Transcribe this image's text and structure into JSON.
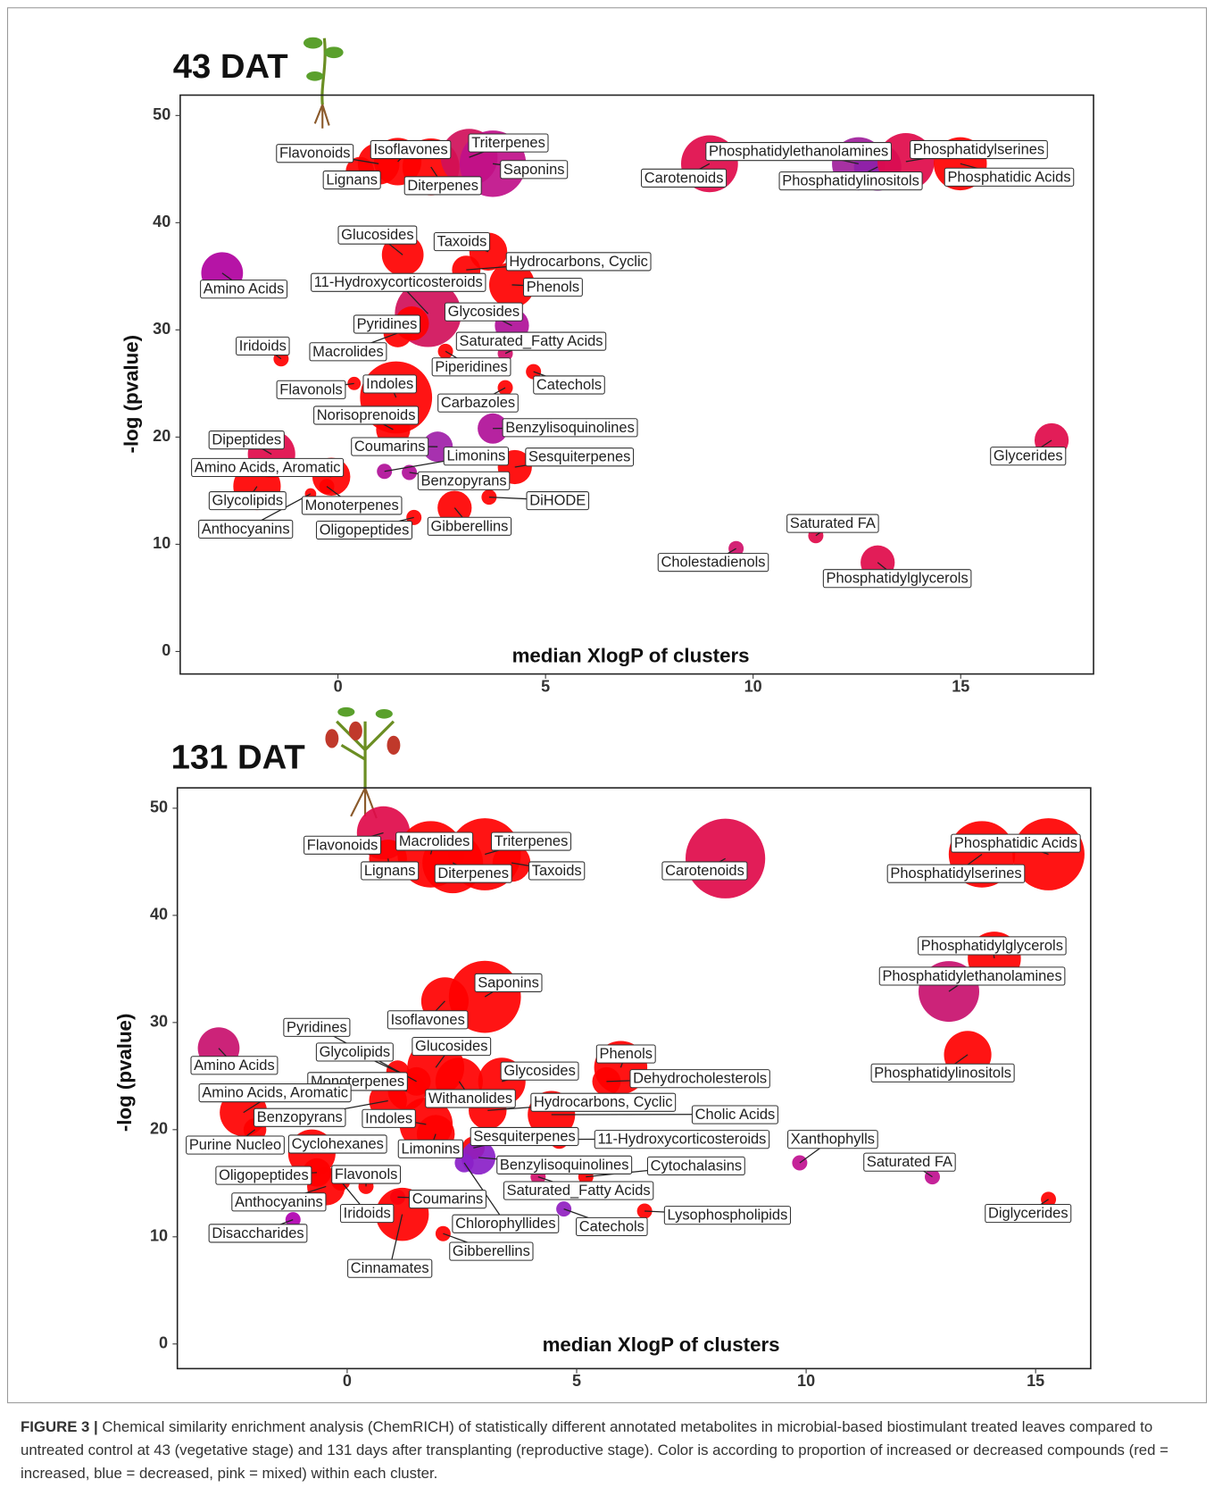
{
  "chart_data": [
    {
      "type": "bubble",
      "title": "43 DAT",
      "xlabel": "median XlogP of clusters",
      "ylabel": "-log (pvalue)",
      "xlim": [
        -3.8,
        18.2
      ],
      "ylim": [
        -2.1,
        51.9
      ],
      "xticks": [
        0,
        5,
        10,
        15
      ],
      "yticks": [
        0,
        10,
        20,
        30,
        40,
        50
      ],
      "points": [
        {
          "name": "Flavonoids",
          "x": 0.98,
          "y": 45.5,
          "size": 22,
          "color": "#ff0000"
        },
        {
          "name": "Isoflavones",
          "x": 1.44,
          "y": 45.7,
          "size": 25,
          "color": "#ff0000"
        },
        {
          "name": "Lignans",
          "x": 0.53,
          "y": 44.8,
          "size": 15,
          "color": "#ff0000"
        },
        {
          "name": "Diterpenes",
          "x": 2.24,
          "y": 45.2,
          "size": 30,
          "color": "#ff0000"
        },
        {
          "name": "Triterpenes",
          "x": 3.16,
          "y": 46.1,
          "size": 30,
          "color": "#d0105a"
        },
        {
          "name": "Saponins",
          "x": 3.73,
          "y": 45.5,
          "size": 35,
          "color": "#c0108a"
        },
        {
          "name": "Carotenoids",
          "x": 8.95,
          "y": 45.5,
          "size": 30,
          "color": "#e00a4a"
        },
        {
          "name": "Phosphatidylethanolamines",
          "x": 12.54,
          "y": 45.5,
          "size": 28,
          "color": "#a0209b"
        },
        {
          "name": "Phosphatidylinositols",
          "x": 13.0,
          "y": 45.2,
          "size": 25,
          "color": "#8e1fa8"
        },
        {
          "name": "Phosphatidylserines",
          "x": 13.68,
          "y": 45.7,
          "size": 30,
          "color": "#e00a4a"
        },
        {
          "name": "Phosphatidic Acids",
          "x": 14.99,
          "y": 45.5,
          "size": 28,
          "color": "#ff0000"
        },
        {
          "name": "Amino Acids",
          "x": -2.79,
          "y": 35.3,
          "size": 22,
          "color": "#b0009e"
        },
        {
          "name": "Glucosides",
          "x": 1.56,
          "y": 37.0,
          "size": 22,
          "color": "#ff0000"
        },
        {
          "name": "Taxoids",
          "x": 3.62,
          "y": 37.3,
          "size": 20,
          "color": "#ff0000"
        },
        {
          "name": "Hydrocarbons, Cyclic",
          "x": 3.09,
          "y": 35.6,
          "size": 15,
          "color": "#ff0000"
        },
        {
          "name": "Phenols",
          "x": 4.19,
          "y": 34.2,
          "size": 24,
          "color": "#ff0000"
        },
        {
          "name": "11-Hydroxycorticosteroids",
          "x": 2.17,
          "y": 31.5,
          "size": 35,
          "color": "#d0105a"
        },
        {
          "name": "Glycosides",
          "x": 4.19,
          "y": 30.4,
          "size": 18,
          "color": "#b01098"
        },
        {
          "name": "Pyridines",
          "x": 1.78,
          "y": 30.6,
          "size": 18,
          "color": "#ff0000"
        },
        {
          "name": "Macrolides",
          "x": 1.44,
          "y": 29.7,
          "size": 15,
          "color": "#ff0000"
        },
        {
          "name": "Iridoids",
          "x": -1.37,
          "y": 27.3,
          "size": 8,
          "color": "#ff0000"
        },
        {
          "name": "Saturated_Fatty Acids",
          "x": 4.03,
          "y": 27.8,
          "size": 8,
          "color": "#d0106a"
        },
        {
          "name": "Piperidines",
          "x": 2.59,
          "y": 28.0,
          "size": 8,
          "color": "#ff0000"
        },
        {
          "name": "Catechols",
          "x": 4.71,
          "y": 26.1,
          "size": 8,
          "color": "#ff0000"
        },
        {
          "name": "Flavonols",
          "x": 0.39,
          "y": 25.0,
          "size": 7,
          "color": "#ff0000"
        },
        {
          "name": "Indoles",
          "x": 1.4,
          "y": 23.7,
          "size": 38,
          "color": "#ff0000"
        },
        {
          "name": "Carbazoles",
          "x": 4.03,
          "y": 24.6,
          "size": 8,
          "color": "#ff0000"
        },
        {
          "name": "Norisoprenoids",
          "x": 1.33,
          "y": 20.7,
          "size": 18,
          "color": "#ff0000"
        },
        {
          "name": "Benzylisoquinolines",
          "x": 3.73,
          "y": 20.8,
          "size": 16,
          "color": "#b01098"
        },
        {
          "name": "Coumarins",
          "x": 2.4,
          "y": 19.1,
          "size": 16,
          "color": "#a020a8"
        },
        {
          "name": "Dipeptides",
          "x": -1.6,
          "y": 18.4,
          "size": 25,
          "color": "#e00a4a"
        },
        {
          "name": "Limonins",
          "x": 1.12,
          "y": 16.8,
          "size": 8,
          "color": "#b01098"
        },
        {
          "name": "Benzopyrans",
          "x": 1.72,
          "y": 16.7,
          "size": 8,
          "color": "#b01098"
        },
        {
          "name": "Sesquiterpenes",
          "x": 4.26,
          "y": 17.2,
          "size": 18,
          "color": "#ff0000"
        },
        {
          "name": "Amino Acids, Aromatic",
          "x": -0.16,
          "y": 16.3,
          "size": 20,
          "color": "#ff0000"
        },
        {
          "name": "Glycolipids",
          "x": -1.95,
          "y": 15.4,
          "size": 25,
          "color": "#ff0000"
        },
        {
          "name": "Monoterpenes",
          "x": -0.27,
          "y": 15.4,
          "size": 8,
          "color": "#ff0000"
        },
        {
          "name": "Anthocyanins",
          "x": -0.66,
          "y": 14.7,
          "size": 6,
          "color": "#ff0000"
        },
        {
          "name": "DiHODE",
          "x": 3.64,
          "y": 14.4,
          "size": 8,
          "color": "#ff0000"
        },
        {
          "name": "Gibberellins",
          "x": 2.81,
          "y": 13.4,
          "size": 18,
          "color": "#ff0000"
        },
        {
          "name": "Oligopeptides",
          "x": 1.83,
          "y": 12.5,
          "size": 8,
          "color": "#ff0000"
        },
        {
          "name": "Glycerides",
          "x": 17.19,
          "y": 19.7,
          "size": 18,
          "color": "#e00a4a"
        },
        {
          "name": "Saturated FA",
          "x": 11.51,
          "y": 10.8,
          "size": 8,
          "color": "#e00a4a"
        },
        {
          "name": "Cholestadienols",
          "x": 9.59,
          "y": 9.6,
          "size": 8,
          "color": "#d0106a"
        },
        {
          "name": "Phosphatidylglycerols",
          "x": 13.0,
          "y": 8.3,
          "size": 18,
          "color": "#e00a4a"
        }
      ]
    },
    {
      "type": "bubble",
      "title": "131 DAT",
      "xlabel": "median XlogP of clusters",
      "ylabel": "-log (pvalue)",
      "xlim": [
        -3.7,
        16.2
      ],
      "ylim": [
        -2.3,
        51.9
      ],
      "xticks": [
        0,
        5,
        10,
        15
      ],
      "yticks": [
        0,
        10,
        20,
        30,
        40,
        50
      ],
      "points": [
        {
          "name": "Flavonoids",
          "x": 0.79,
          "y": 47.7,
          "size": 28,
          "color": "#e00a4a"
        },
        {
          "name": "Lignans",
          "x": 0.89,
          "y": 45.3,
          "size": 20,
          "color": "#ff0000"
        },
        {
          "name": "Macrolides",
          "x": 1.82,
          "y": 45.7,
          "size": 35,
          "color": "#ff0000"
        },
        {
          "name": "Diterpenes",
          "x": 2.3,
          "y": 44.9,
          "size": 32,
          "color": "#ff0000"
        },
        {
          "name": "Triterpenes",
          "x": 3.0,
          "y": 45.7,
          "size": 38,
          "color": "#ff0000"
        },
        {
          "name": "Taxoids",
          "x": 3.58,
          "y": 44.9,
          "size": 20,
          "color": "#ff0000"
        },
        {
          "name": "Carotenoids",
          "x": 8.24,
          "y": 45.3,
          "size": 42,
          "color": "#e00a4a"
        },
        {
          "name": "Phosphatidic Acids",
          "x": 15.28,
          "y": 45.7,
          "size": 38,
          "color": "#ff0000"
        },
        {
          "name": "Phosphatidylserines",
          "x": 13.83,
          "y": 45.7,
          "size": 35,
          "color": "#ff0000"
        },
        {
          "name": "Phosphatidylglycerols",
          "x": 14.1,
          "y": 36.0,
          "size": 28,
          "color": "#ff0000"
        },
        {
          "name": "Phosphatidylethanolamines",
          "x": 13.11,
          "y": 32.9,
          "size": 32,
          "color": "#c8106e"
        },
        {
          "name": "Phosphatidylinositols",
          "x": 13.52,
          "y": 27.0,
          "size": 25,
          "color": "#ff0000"
        },
        {
          "name": "Saponins",
          "x": 3.0,
          "y": 32.4,
          "size": 38,
          "color": "#ff0000"
        },
        {
          "name": "Isoflavones",
          "x": 2.13,
          "y": 32.0,
          "size": 25,
          "color": "#ff0000"
        },
        {
          "name": "Amino Acids",
          "x": -2.8,
          "y": 27.6,
          "size": 22,
          "color": "#c8106e"
        },
        {
          "name": "Pyridines",
          "x": 1.51,
          "y": 24.5,
          "size": 15,
          "color": "#ff0000"
        },
        {
          "name": "Glycolipids",
          "x": 1.1,
          "y": 25.4,
          "size": 12,
          "color": "#ff0000"
        },
        {
          "name": "Glucosides",
          "x": 1.93,
          "y": 25.8,
          "size": 30,
          "color": "#ff0000"
        },
        {
          "name": "Monoterpenes",
          "x": 1.3,
          "y": 23.6,
          "size": 20,
          "color": "#ff0000"
        },
        {
          "name": "Amino Acids, Aromatic",
          "x": -2.26,
          "y": 21.6,
          "size": 25,
          "color": "#ff0000"
        },
        {
          "name": "Benzopyrans",
          "x": 0.89,
          "y": 22.7,
          "size": 20,
          "color": "#ff0000"
        },
        {
          "name": "Indoles",
          "x": 1.72,
          "y": 20.5,
          "size": 28,
          "color": "#ff0000"
        },
        {
          "name": "Withanolides",
          "x": 2.44,
          "y": 24.5,
          "size": 25,
          "color": "#ff0000"
        },
        {
          "name": "Glycosides",
          "x": 3.37,
          "y": 24.5,
          "size": 25,
          "color": "#ff0000"
        },
        {
          "name": "Hydrocarbons, Cyclic",
          "x": 3.06,
          "y": 21.8,
          "size": 20,
          "color": "#ff0000"
        },
        {
          "name": "Phenols",
          "x": 5.96,
          "y": 25.8,
          "size": 28,
          "color": "#ff0000"
        },
        {
          "name": "Dehydrocholesterols",
          "x": 5.65,
          "y": 24.5,
          "size": 15,
          "color": "#ff0000"
        },
        {
          "name": "Cholic Acids",
          "x": 4.45,
          "y": 21.4,
          "size": 25,
          "color": "#ff0000"
        },
        {
          "name": "11-Hydroxycorticosteroids",
          "x": 4.62,
          "y": 19.1,
          "size": 10,
          "color": "#ff0000"
        },
        {
          "name": "Sesquiterpenes",
          "x": 2.75,
          "y": 18.3,
          "size": 12,
          "color": "#ff0000"
        },
        {
          "name": "Purine Nucleo",
          "x": -2.01,
          "y": 20.0,
          "size": 12,
          "color": "#ff0000"
        },
        {
          "name": "Cyclohexanes",
          "x": -0.77,
          "y": 17.8,
          "size": 25,
          "color": "#ff0000"
        },
        {
          "name": "Oligopeptides",
          "x": -0.66,
          "y": 16.0,
          "size": 15,
          "color": "#ff0000"
        },
        {
          "name": "Anthocyanins",
          "x": -0.46,
          "y": 14.7,
          "size": 20,
          "color": "#ff0000"
        },
        {
          "name": "Flavonols",
          "x": 0.41,
          "y": 14.7,
          "size": 8,
          "color": "#ff0000"
        },
        {
          "name": "Iridoids",
          "x": -0.14,
          "y": 15.2,
          "size": 10,
          "color": "#ff0000"
        },
        {
          "name": "Disaccharides",
          "x": -1.18,
          "y": 11.6,
          "size": 8,
          "color": "#b000b0"
        },
        {
          "name": "Limonins",
          "x": 1.93,
          "y": 19.6,
          "size": 20,
          "color": "#ff0000"
        },
        {
          "name": "Benzylisoquinolines",
          "x": 2.86,
          "y": 17.4,
          "size": 18,
          "color": "#8a20c8"
        },
        {
          "name": "Coumarins",
          "x": 1.1,
          "y": 13.7,
          "size": 8,
          "color": "#c01090"
        },
        {
          "name": "Cinnamates",
          "x": 1.2,
          "y": 12.1,
          "size": 28,
          "color": "#ff0000"
        },
        {
          "name": "Chlorophyllides",
          "x": 2.55,
          "y": 16.9,
          "size": 10,
          "color": "#8a20c8"
        },
        {
          "name": "Gibberellins",
          "x": 2.09,
          "y": 10.3,
          "size": 8,
          "color": "#ff0000"
        },
        {
          "name": "Saturated_Fatty Acids",
          "x": 4.16,
          "y": 15.6,
          "size": 8,
          "color": "#d0106a"
        },
        {
          "name": "Catechols",
          "x": 4.72,
          "y": 12.6,
          "size": 8,
          "color": "#9020c0"
        },
        {
          "name": "Cytochalasins",
          "x": 5.2,
          "y": 15.6,
          "size": 8,
          "color": "#ff0000"
        },
        {
          "name": "Lysophospholipids",
          "x": 6.48,
          "y": 12.4,
          "size": 8,
          "color": "#ff0000"
        },
        {
          "name": "Xanthophylls",
          "x": 9.86,
          "y": 16.9,
          "size": 8,
          "color": "#c01090"
        },
        {
          "name": "Saturated FA",
          "x": 12.75,
          "y": 15.6,
          "size": 8,
          "color": "#c01090"
        },
        {
          "name": "Diglycerides",
          "x": 15.28,
          "y": 13.5,
          "size": 8,
          "color": "#ff0000"
        }
      ]
    }
  ],
  "caption": {
    "label": "FIGURE 3 |",
    "text": "Chemical similarity enrichment analysis (ChemRICH) of statistically different annotated metabolites in microbial-based biostimulant treated leaves compared to untreated control at 43 (vegetative stage) and 131 days after transplanting (reproductive stage). Color is according to proportion of increased or decreased compounds (red = increased, blue = decreased, pink = mixed) within each cluster."
  }
}
